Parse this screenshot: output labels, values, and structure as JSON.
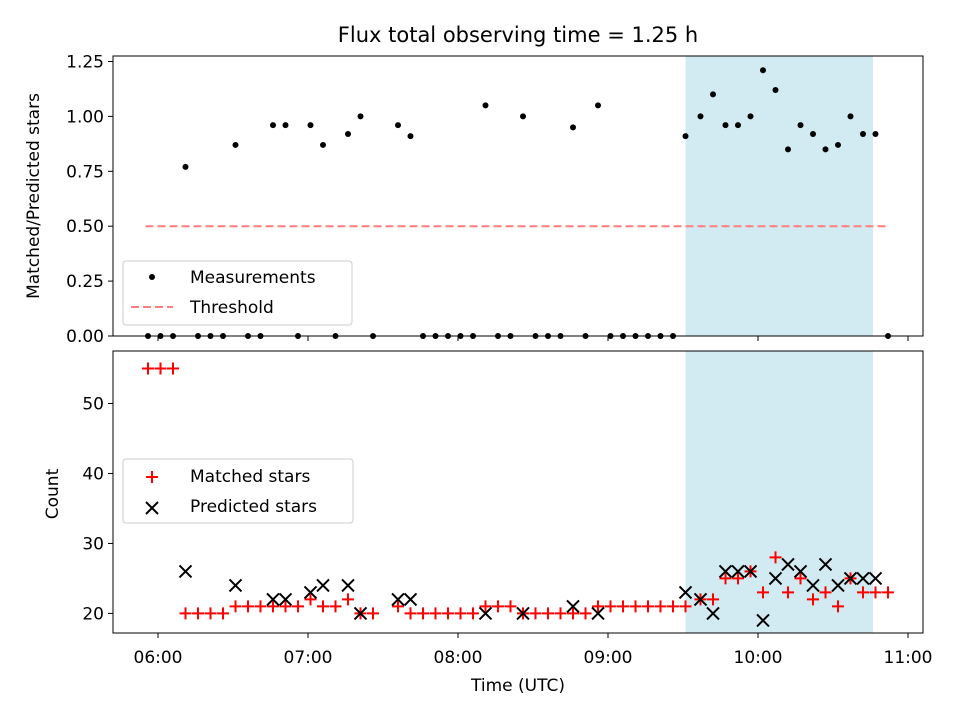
{
  "chart_data": [
    {
      "type": "scatter",
      "title": "Flux total observing time = 1.25 h",
      "ylabel": "Matched/Predicted stars",
      "ylim": [
        0,
        1.275
      ],
      "xlim": [
        "05:42",
        "11:06"
      ],
      "yticks": [
        "0.00",
        "0.25",
        "0.50",
        "0.75",
        "1.00",
        "1.25"
      ],
      "legend": {
        "placement": "lower-left",
        "entries": [
          {
            "name": "Measurements",
            "marker": "dot",
            "color": "#000000"
          },
          {
            "name": "Threshold",
            "marker": "dashed-line",
            "color": "#ff7f7f"
          }
        ]
      },
      "threshold": {
        "value": 0.5,
        "x_start": "05:55",
        "x_end": "10:52"
      },
      "highlight_span": {
        "x_start": "09:31",
        "x_end": "10:46",
        "color": "#add8e6"
      },
      "series": [
        {
          "name": "Measurements",
          "points": [
            [
              "05:56",
              0
            ],
            [
              "06:01",
              0
            ],
            [
              "06:06",
              0
            ],
            [
              "06:11",
              0.77
            ],
            [
              "06:16",
              0
            ],
            [
              "06:21",
              0
            ],
            [
              "06:26",
              0
            ],
            [
              "06:31",
              0.87
            ],
            [
              "06:36",
              0
            ],
            [
              "06:41",
              0
            ],
            [
              "06:46",
              0.96
            ],
            [
              "06:51",
              0.96
            ],
            [
              "06:56",
              0
            ],
            [
              "07:01",
              0.96
            ],
            [
              "07:06",
              0.87
            ],
            [
              "07:11",
              0
            ],
            [
              "07:16",
              0.92
            ],
            [
              "07:21",
              1.0
            ],
            [
              "07:26",
              0
            ],
            [
              "07:36",
              0.96
            ],
            [
              "07:41",
              0.91
            ],
            [
              "07:46",
              0
            ],
            [
              "07:51",
              0
            ],
            [
              "07:56",
              0
            ],
            [
              "08:01",
              0
            ],
            [
              "08:06",
              0
            ],
            [
              "08:11",
              1.05
            ],
            [
              "08:16",
              0
            ],
            [
              "08:21",
              0
            ],
            [
              "08:26",
              1.0
            ],
            [
              "08:31",
              0
            ],
            [
              "08:36",
              0
            ],
            [
              "08:41",
              0
            ],
            [
              "08:46",
              0.95
            ],
            [
              "08:51",
              0
            ],
            [
              "08:56",
              1.05
            ],
            [
              "09:01",
              0
            ],
            [
              "09:06",
              0
            ],
            [
              "09:11",
              0
            ],
            [
              "09:16",
              0
            ],
            [
              "09:21",
              0
            ],
            [
              "09:26",
              0
            ],
            [
              "09:31",
              0.91
            ],
            [
              "09:37",
              1.0
            ],
            [
              "09:42",
              1.1
            ],
            [
              "09:47",
              0.96
            ],
            [
              "09:52",
              0.96
            ],
            [
              "09:57",
              1.0
            ],
            [
              "10:02",
              1.21
            ],
            [
              "10:07",
              1.12
            ],
            [
              "10:12",
              0.85
            ],
            [
              "10:17",
              0.96
            ],
            [
              "10:22",
              0.92
            ],
            [
              "10:27",
              0.85
            ],
            [
              "10:32",
              0.87
            ],
            [
              "10:37",
              1.0
            ],
            [
              "10:42",
              0.92
            ],
            [
              "10:47",
              0.92
            ],
            [
              "10:52",
              0
            ]
          ]
        }
      ]
    },
    {
      "type": "scatter",
      "xlabel": "Time (UTC)",
      "ylabel": "Count",
      "ylim": [
        17.2,
        57.5
      ],
      "xlim": [
        "05:42",
        "11:06"
      ],
      "xticks": [
        "06:00",
        "07:00",
        "08:00",
        "09:00",
        "10:00",
        "11:00"
      ],
      "yticks": [
        "20",
        "30",
        "40",
        "50"
      ],
      "legend": {
        "placement": "center-left",
        "entries": [
          {
            "name": "Matched stars",
            "marker": "plus",
            "color": "#ff0000"
          },
          {
            "name": "Predicted stars",
            "marker": "x",
            "color": "#000000"
          }
        ]
      },
      "highlight_span": {
        "x_start": "09:31",
        "x_end": "10:46",
        "color": "#add8e6"
      },
      "series": [
        {
          "name": "Matched stars",
          "points": [
            [
              "05:56",
              55
            ],
            [
              "06:01",
              55
            ],
            [
              "06:06",
              55
            ],
            [
              "06:11",
              20
            ],
            [
              "06:16",
              20
            ],
            [
              "06:21",
              20
            ],
            [
              "06:26",
              20
            ],
            [
              "06:31",
              21
            ],
            [
              "06:36",
              21
            ],
            [
              "06:41",
              21
            ],
            [
              "06:46",
              21
            ],
            [
              "06:51",
              21
            ],
            [
              "06:56",
              21
            ],
            [
              "07:01",
              22
            ],
            [
              "07:06",
              21
            ],
            [
              "07:11",
              21
            ],
            [
              "07:16",
              22
            ],
            [
              "07:21",
              20
            ],
            [
              "07:26",
              20
            ],
            [
              "07:36",
              21
            ],
            [
              "07:41",
              20
            ],
            [
              "07:46",
              20
            ],
            [
              "07:51",
              20
            ],
            [
              "07:56",
              20
            ],
            [
              "08:01",
              20
            ],
            [
              "08:06",
              20
            ],
            [
              "08:11",
              21
            ],
            [
              "08:16",
              21
            ],
            [
              "08:21",
              21
            ],
            [
              "08:26",
              20
            ],
            [
              "08:31",
              20
            ],
            [
              "08:36",
              20
            ],
            [
              "08:41",
              20
            ],
            [
              "08:46",
              20
            ],
            [
              "08:51",
              20
            ],
            [
              "08:56",
              21
            ],
            [
              "09:01",
              21
            ],
            [
              "09:06",
              21
            ],
            [
              "09:11",
              21
            ],
            [
              "09:16",
              21
            ],
            [
              "09:21",
              21
            ],
            [
              "09:26",
              21
            ],
            [
              "09:31",
              21
            ],
            [
              "09:37",
              22
            ],
            [
              "09:42",
              22
            ],
            [
              "09:47",
              25
            ],
            [
              "09:52",
              25
            ],
            [
              "09:57",
              26
            ],
            [
              "10:02",
              23
            ],
            [
              "10:07",
              28
            ],
            [
              "10:12",
              23
            ],
            [
              "10:17",
              25
            ],
            [
              "10:22",
              22
            ],
            [
              "10:27",
              23
            ],
            [
              "10:32",
              21
            ],
            [
              "10:37",
              25
            ],
            [
              "10:42",
              23
            ],
            [
              "10:47",
              23
            ],
            [
              "10:52",
              23
            ]
          ]
        },
        {
          "name": "Predicted stars",
          "points": [
            [
              "06:11",
              26
            ],
            [
              "06:31",
              24
            ],
            [
              "06:46",
              22
            ],
            [
              "06:51",
              22
            ],
            [
              "07:01",
              23
            ],
            [
              "07:06",
              24
            ],
            [
              "07:16",
              24
            ],
            [
              "07:21",
              20
            ],
            [
              "07:36",
              22
            ],
            [
              "07:41",
              22
            ],
            [
              "08:11",
              20
            ],
            [
              "08:26",
              20
            ],
            [
              "08:46",
              21
            ],
            [
              "08:56",
              20
            ],
            [
              "09:31",
              23
            ],
            [
              "09:37",
              22
            ],
            [
              "09:42",
              20
            ],
            [
              "09:47",
              26
            ],
            [
              "09:52",
              26
            ],
            [
              "09:57",
              26
            ],
            [
              "10:02",
              19
            ],
            [
              "10:07",
              25
            ],
            [
              "10:12",
              27
            ],
            [
              "10:17",
              26
            ],
            [
              "10:22",
              24
            ],
            [
              "10:27",
              27
            ],
            [
              "10:32",
              24
            ],
            [
              "10:37",
              25
            ],
            [
              "10:42",
              25
            ],
            [
              "10:47",
              25
            ]
          ]
        }
      ]
    }
  ]
}
